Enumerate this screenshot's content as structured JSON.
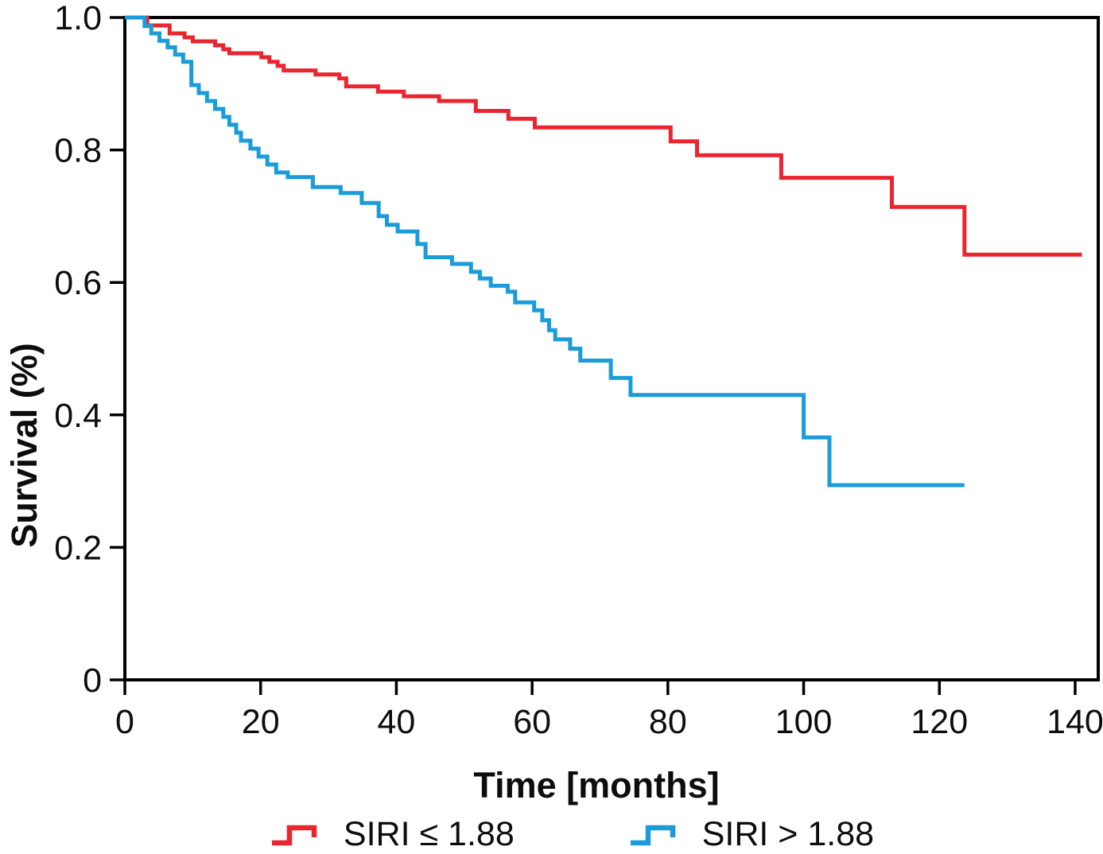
{
  "axes": {
    "y_title": "Survival (%)",
    "x_title": "Time [months]"
  },
  "legend": {
    "items": [
      {
        "label": "SIRI ≤ 1.88",
        "color": "#ea2530"
      },
      {
        "label": "SIRI > 1.88",
        "color": "#1a9cd9"
      }
    ]
  },
  "chart_data": {
    "type": "line",
    "subtype": "kaplan-meier-step",
    "title": "",
    "xlabel": "Time [months]",
    "ylabel": "Survival (%)",
    "xlim": [
      0,
      143.4
    ],
    "ylim": [
      0,
      1.0
    ],
    "grid": false,
    "legend_position": "bottom",
    "axis_color": "#000000",
    "text_color": "#0d0d0d",
    "x_ticks": [
      0,
      20,
      40,
      60,
      80,
      100,
      120,
      140
    ],
    "y_ticks": [
      {
        "value": 0,
        "label": "0"
      },
      {
        "value": 0.2,
        "label": "0.2"
      },
      {
        "value": 0.4,
        "label": "0.4"
      },
      {
        "value": 0.6,
        "label": "0.6"
      },
      {
        "value": 0.8,
        "label": "0.8"
      },
      {
        "value": 1.0,
        "label": "1.0"
      }
    ],
    "series": [
      {
        "name": "SIRI ≤ 1.88",
        "color": "#ea2530",
        "end_time": 141,
        "points": [
          [
            0,
            1.0
          ],
          [
            3.3,
            0.988
          ],
          [
            6.6,
            0.976
          ],
          [
            8.8,
            0.97
          ],
          [
            10,
            0.964
          ],
          [
            13.3,
            0.958
          ],
          [
            14.5,
            0.952
          ],
          [
            15.4,
            0.946
          ],
          [
            20.1,
            0.94
          ],
          [
            21.3,
            0.933
          ],
          [
            22.5,
            0.927
          ],
          [
            23.4,
            0.92
          ],
          [
            28.1,
            0.914
          ],
          [
            31.6,
            0.908
          ],
          [
            32.6,
            0.896
          ],
          [
            37.3,
            0.888
          ],
          [
            41.1,
            0.881
          ],
          [
            46.3,
            0.874
          ],
          [
            51.7,
            0.859
          ],
          [
            56.5,
            0.847
          ],
          [
            60.4,
            0.834
          ],
          [
            80.4,
            0.813
          ],
          [
            84.3,
            0.792
          ],
          [
            96.7,
            0.758
          ],
          [
            113,
            0.714
          ],
          [
            123.7,
            0.642
          ]
        ]
      },
      {
        "name": "SIRI > 1.88",
        "color": "#1a9cd9",
        "end_time": 123.7,
        "points": [
          [
            0,
            1.0
          ],
          [
            2.9,
            0.987
          ],
          [
            3.9,
            0.976
          ],
          [
            5.1,
            0.965
          ],
          [
            6.3,
            0.955
          ],
          [
            7.4,
            0.944
          ],
          [
            8.6,
            0.933
          ],
          [
            9.8,
            0.898
          ],
          [
            10.9,
            0.886
          ],
          [
            12.1,
            0.874
          ],
          [
            13.3,
            0.862
          ],
          [
            14.5,
            0.85
          ],
          [
            15.4,
            0.838
          ],
          [
            16.4,
            0.826
          ],
          [
            17.1,
            0.814
          ],
          [
            18.5,
            0.802
          ],
          [
            19.7,
            0.79
          ],
          [
            21,
            0.778
          ],
          [
            22.3,
            0.766
          ],
          [
            24,
            0.759
          ],
          [
            27.7,
            0.744
          ],
          [
            31.8,
            0.735
          ],
          [
            34.9,
            0.72
          ],
          [
            37.4,
            0.7
          ],
          [
            38.6,
            0.687
          ],
          [
            40.2,
            0.677
          ],
          [
            43.1,
            0.658
          ],
          [
            44.3,
            0.638
          ],
          [
            48.2,
            0.628
          ],
          [
            51,
            0.616
          ],
          [
            52.3,
            0.606
          ],
          [
            53.9,
            0.595
          ],
          [
            56.4,
            0.586
          ],
          [
            57.5,
            0.57
          ],
          [
            60.3,
            0.558
          ],
          [
            61.5,
            0.543
          ],
          [
            62.5,
            0.528
          ],
          [
            63.4,
            0.514
          ],
          [
            65.6,
            0.5
          ],
          [
            67.1,
            0.482
          ],
          [
            71.6,
            0.456
          ],
          [
            74.5,
            0.43
          ],
          [
            100,
            0.366
          ],
          [
            103.8,
            0.294
          ]
        ]
      }
    ]
  }
}
